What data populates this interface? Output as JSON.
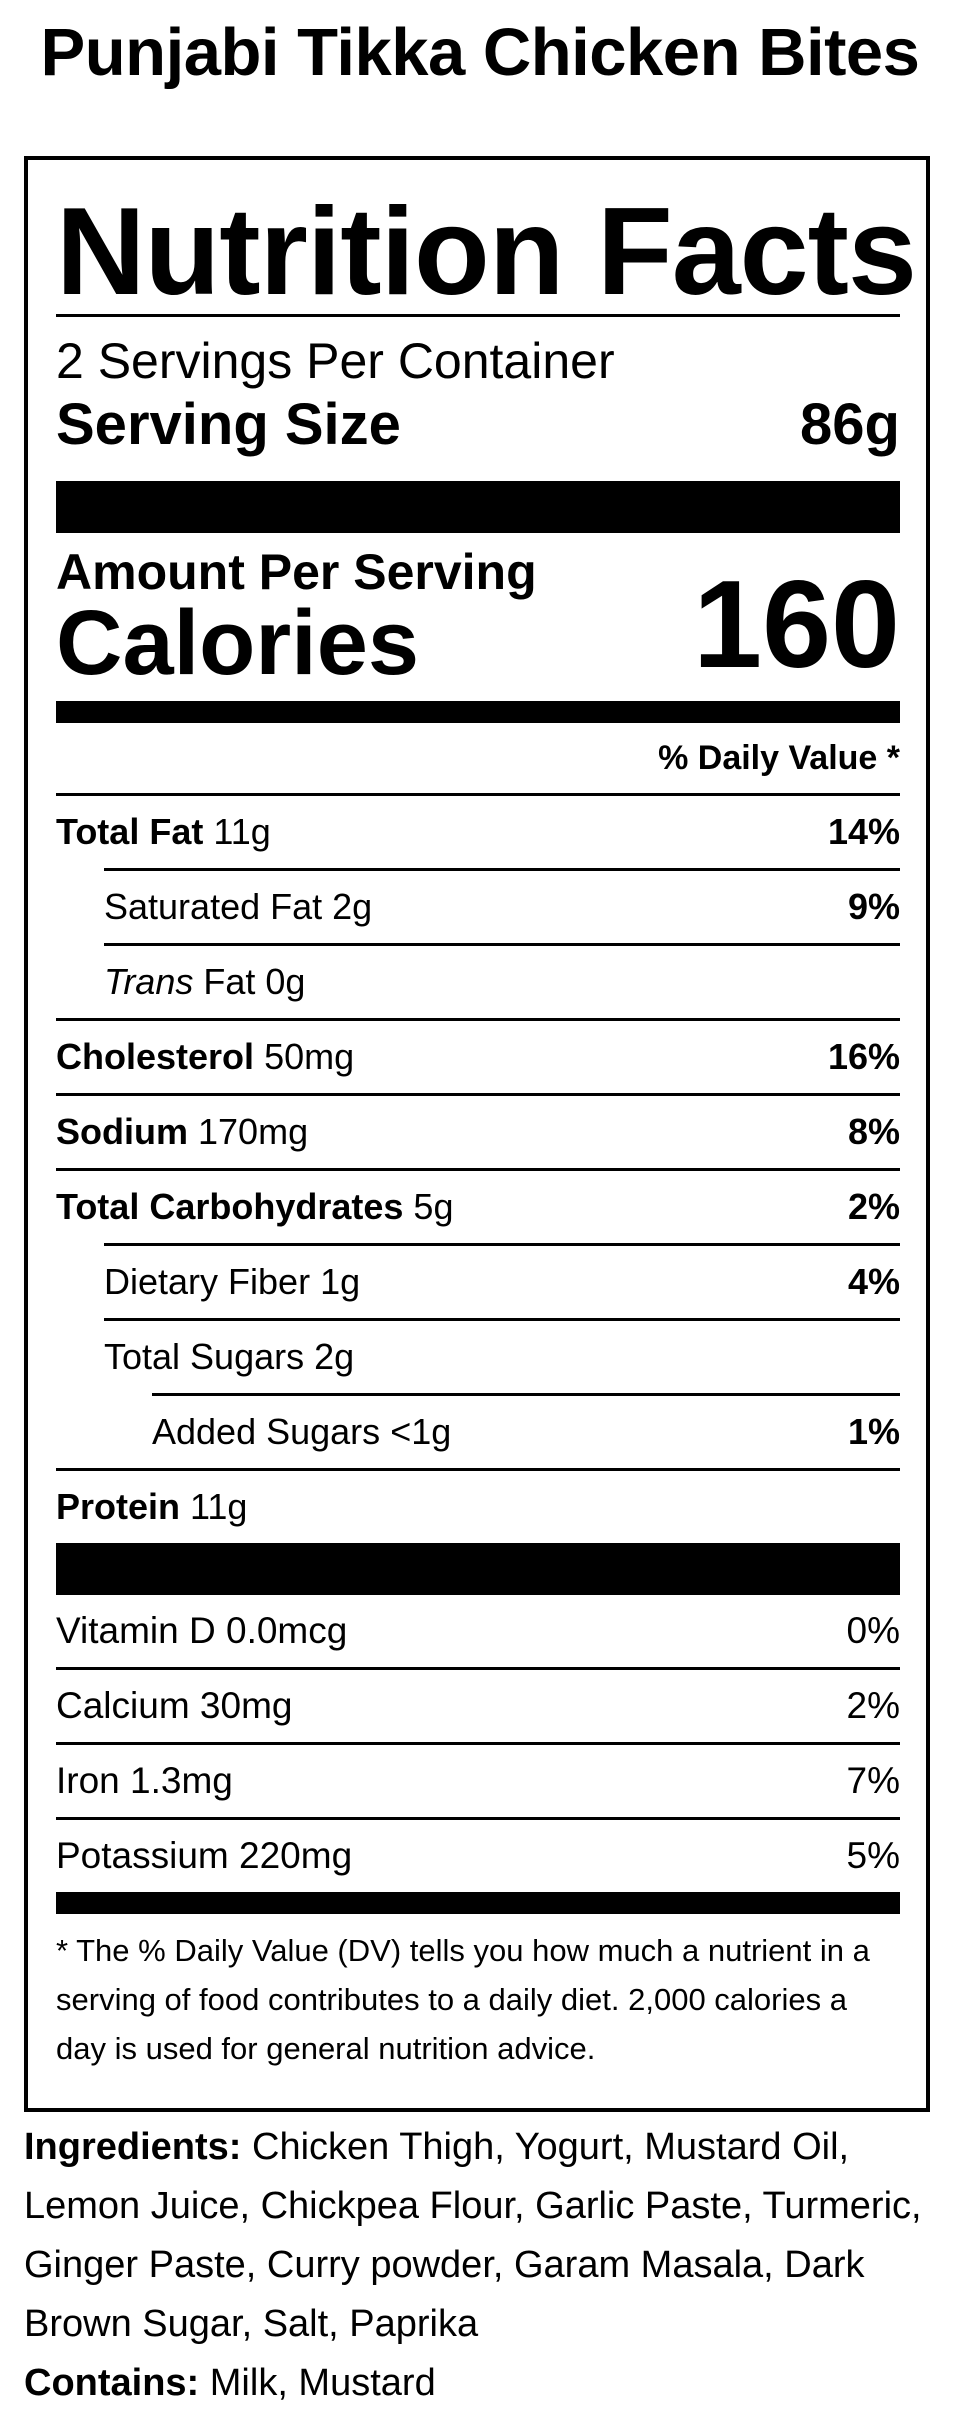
{
  "product": {
    "title": "Punjabi Tikka Chicken Bites"
  },
  "label": {
    "heading": "Nutrition Facts",
    "servings_per_container": "2 Servings Per Container",
    "serving_size_label": "Serving Size",
    "serving_size_value": "86g",
    "amount_per_serving": "Amount Per Serving",
    "calories_label": "Calories",
    "calories_value": "160",
    "dv_header": "% Daily Value *"
  },
  "nutrients": [
    {
      "name": "Total Fat",
      "amount": "11g",
      "dv": "14%"
    },
    {
      "name": "Saturated Fat",
      "amount": "2g",
      "dv": "9%"
    },
    {
      "name_italic": "Trans",
      "name": "Fat",
      "amount": "0g",
      "dv": ""
    },
    {
      "name": "Cholesterol",
      "amount": "50mg",
      "dv": "16%"
    },
    {
      "name": "Sodium",
      "amount": "170mg",
      "dv": "8%"
    },
    {
      "name": "Total Carbohydrates",
      "amount": "5g",
      "dv": "2%"
    },
    {
      "name": "Dietary Fiber",
      "amount": "1g",
      "dv": "4%"
    },
    {
      "name": "Total Sugars",
      "amount": "2g",
      "dv": ""
    },
    {
      "name": "Added Sugars",
      "amount": "<1g",
      "dv": "1%"
    },
    {
      "name": "Protein",
      "amount": "11g",
      "dv": ""
    }
  ],
  "vitamins": [
    {
      "name": "Vitamin D",
      "amount": "0.0mcg",
      "dv": "0%"
    },
    {
      "name": "Calcium",
      "amount": "30mg",
      "dv": "2%"
    },
    {
      "name": "Iron",
      "amount": "1.3mg",
      "dv": "7%"
    },
    {
      "name": "Potassium",
      "amount": "220mg",
      "dv": "5%"
    }
  ],
  "footnote": "* The % Daily Value (DV) tells you how much a nutrient in a serving of food contributes to a daily diet. 2,000 calories a day is used for general nutrition advice.",
  "ingredients": {
    "label": "Ingredients:",
    "text": "Chicken Thigh, Yogurt, Mustard Oil, Lemon Juice, Chickpea Flour, Garlic Paste, Turmeric, Ginger Paste, Curry powder, Garam Masala, Dark Brown Sugar, Salt, Paprika"
  },
  "contains": {
    "label": "Contains:",
    "text": "Milk, Mustard"
  }
}
